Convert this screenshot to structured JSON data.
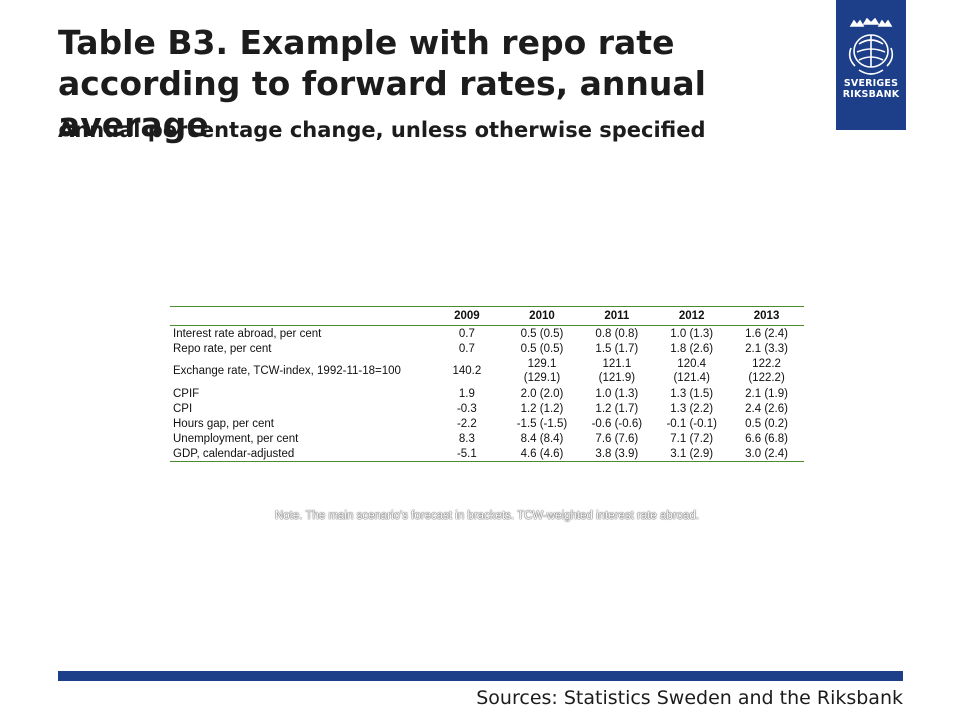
{
  "header": {
    "title": "Table B3. Example with repo rate according to forward rates, annual average",
    "subtitle": "Annual percentage change, unless otherwise specified"
  },
  "logo": {
    "icon": "riksbank-crest-icon",
    "line1": "SVERIGES",
    "line2": "RIKSBANK",
    "background": "#1d3f8a"
  },
  "table": {
    "columns": [
      "",
      "2009",
      "2010",
      "2011",
      "2012",
      "2013"
    ],
    "rows": [
      {
        "label": "Interest rate abroad, per cent",
        "values": [
          "0.7",
          "0.5 (0.5)",
          "0.8 (0.8)",
          "1.0 (1.3)",
          "1.6 (2.4)"
        ]
      },
      {
        "label": "Repo rate, per cent",
        "values": [
          "0.7",
          "0.5 (0.5)",
          "1.5 (1.7)",
          "1.8 (2.6)",
          "2.1 (3.3)"
        ]
      },
      {
        "label": "Exchange rate, TCW-index, 1992-11-18=100",
        "values": [
          "140.2",
          "129.1",
          "121.1",
          "120.4",
          "122.2"
        ],
        "values2": [
          "",
          "(129.1)",
          "(121.9)",
          "(121.4)",
          "(122.2)"
        ]
      },
      {
        "label": "CPIF",
        "values": [
          "1.9",
          "2.0 (2.0)",
          "1.0 (1.3)",
          "1.3 (1.5)",
          "2.1 (1.9)"
        ]
      },
      {
        "label": "CPI",
        "values": [
          "-0.3",
          "1.2 (1.2)",
          "1.2 (1.7)",
          "1.3 (2.2)",
          "2.4 (2.6)"
        ]
      },
      {
        "label": "Hours gap, per cent",
        "values": [
          "-2.2",
          "-1.5 (-1.5)",
          "-0.6 (-0.6)",
          "-0.1 (-0.1)",
          "0.5 (0.2)"
        ]
      },
      {
        "label": "Unemployment, per cent",
        "values": [
          "8.3",
          "8.4 (8.4)",
          "7.6 (7.6)",
          "7.1 (7.2)",
          "6.6 (6.8)"
        ]
      },
      {
        "label": "GDP, calendar-adjusted",
        "values": [
          "-5.1",
          "4.6 (4.6)",
          "3.8 (3.9)",
          "3.1 (2.9)",
          "3.0 (2.4)"
        ]
      }
    ],
    "rule_color": "#4e8a2e"
  },
  "note": "Note. The main scenario's forecast in brackets. TCW-weighted interest rate abroad.",
  "footer": {
    "bar_color": "#1d3f8a",
    "sources": "Sources: Statistics Sweden and the Riksbank"
  }
}
